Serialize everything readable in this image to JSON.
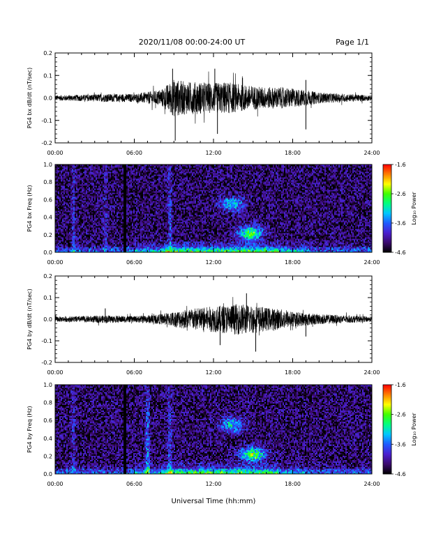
{
  "header": {
    "title": "2020/11/08  00:00-24:00 UT",
    "page": "Page 1/1"
  },
  "xaxis_label": "Universal Time (hh:mm)",
  "colorbar": {
    "label": "Log₁₀ Power",
    "ticks": [
      "-1.6",
      "-2.6",
      "-3.6",
      "-4.6"
    ],
    "tick_values": [
      -1.6,
      -2.6,
      -3.6,
      -4.6
    ],
    "range": [
      -4.6,
      -1.6
    ],
    "colormap": [
      "#000000",
      "#3b0a6e",
      "#4a1fd0",
      "#1f5cff",
      "#00c8ff",
      "#00ff80",
      "#40ff00",
      "#ffff00",
      "#ff8000",
      "#ff0000"
    ]
  },
  "chart_data": [
    {
      "type": "line",
      "panel": "PG4 bx waveform",
      "ylabel": "PG4 bx dB/dt (nT/sec)",
      "ylim": [
        -0.2,
        0.2
      ],
      "yticks": [
        "0.2",
        "0.1",
        "0.0",
        "-0.1",
        "-0.2"
      ],
      "ytick_values": [
        0.2,
        0.1,
        0.0,
        -0.1,
        -0.2
      ],
      "xlim": [
        "00:00",
        "24:00"
      ],
      "xticks": [
        "00:00",
        "06:00",
        "12:00",
        "18:00",
        "24:00"
      ],
      "envelope": {
        "x_hours": [
          0,
          2,
          4,
          6,
          8,
          9,
          10,
          11,
          12,
          13,
          14,
          15,
          16,
          17,
          18,
          19,
          20,
          22,
          24
        ],
        "amplitude": [
          0.01,
          0.012,
          0.015,
          0.015,
          0.03,
          0.07,
          0.06,
          0.06,
          0.055,
          0.06,
          0.05,
          0.045,
          0.04,
          0.04,
          0.035,
          0.03,
          0.02,
          0.015,
          0.01
        ]
      },
      "spikes": [
        {
          "x_hour": 9.1,
          "y": -0.19
        },
        {
          "x_hour": 8.9,
          "y": 0.13
        },
        {
          "x_hour": 12.1,
          "y": 0.13
        },
        {
          "x_hour": 12.3,
          "y": -0.16
        },
        {
          "x_hour": 19.0,
          "y": -0.14
        },
        {
          "x_hour": 19.0,
          "y": 0.08
        }
      ]
    },
    {
      "type": "heatmap",
      "panel": "PG4 bx spectrogram",
      "ylabel": "PG4 bx Freq (Hz)",
      "ylim": [
        0.0,
        1.0
      ],
      "yticks": [
        "1.0",
        "0.8",
        "0.6",
        "0.4",
        "0.2",
        "0.0"
      ],
      "ytick_values": [
        1.0,
        0.8,
        0.6,
        0.4,
        0.2,
        0.0
      ],
      "xlim": [
        "00:00",
        "24:00"
      ],
      "xticks": [
        "00:00",
        "06:00",
        "12:00",
        "18:00",
        "24:00"
      ],
      "background_log_power": -4.3,
      "features": [
        {
          "kind": "lowband",
          "note": "elevated power below ~0.05 Hz all day, strongest 08:00-17:00"
        },
        {
          "kind": "blob",
          "t_hour": 14.8,
          "f_hz": 0.22,
          "log_power": -2.6
        },
        {
          "kind": "blob",
          "t_hour": 13.4,
          "f_hz": 0.55,
          "log_power": -3.2
        },
        {
          "kind": "streak",
          "t_hour": 1.4,
          "log_power": -3.6
        },
        {
          "kind": "streak",
          "t_hour": 3.8,
          "log_power": -3.7
        },
        {
          "kind": "streak",
          "t_hour": 8.7,
          "log_power": -3.4
        },
        {
          "kind": "gap",
          "t_hour": 5.3
        }
      ]
    },
    {
      "type": "line",
      "panel": "PG4 by waveform",
      "ylabel": "PG4 by dB/dt (nT/sec)",
      "ylim": [
        -0.2,
        0.2
      ],
      "yticks": [
        "0.2",
        "0.1",
        "0.0",
        "-0.1",
        "-0.2"
      ],
      "ytick_values": [
        0.2,
        0.1,
        0.0,
        -0.1,
        -0.2
      ],
      "xlim": [
        "00:00",
        "24:00"
      ],
      "xticks": [
        "00:00",
        "06:00",
        "12:00",
        "18:00",
        "24:00"
      ],
      "envelope": {
        "x_hours": [
          0,
          2,
          4,
          6,
          8,
          9,
          10,
          11,
          12,
          13,
          14,
          15,
          16,
          17,
          18,
          19,
          20,
          22,
          24
        ],
        "amplitude": [
          0.01,
          0.012,
          0.015,
          0.012,
          0.02,
          0.03,
          0.04,
          0.045,
          0.05,
          0.055,
          0.06,
          0.055,
          0.045,
          0.04,
          0.03,
          0.025,
          0.02,
          0.015,
          0.01
        ]
      },
      "spikes": [
        {
          "x_hour": 14.5,
          "y": 0.12
        },
        {
          "x_hour": 15.2,
          "y": -0.15
        },
        {
          "x_hour": 12.5,
          "y": -0.12
        },
        {
          "x_hour": 3.8,
          "y": 0.05
        },
        {
          "x_hour": 19.0,
          "y": -0.08
        }
      ]
    },
    {
      "type": "heatmap",
      "panel": "PG4 by spectrogram",
      "ylabel": "PG4 by Freq (Hz)",
      "ylim": [
        0.0,
        1.0
      ],
      "yticks": [
        "1.0",
        "0.8",
        "0.6",
        "0.4",
        "0.2",
        "0.0"
      ],
      "ytick_values": [
        1.0,
        0.8,
        0.6,
        0.4,
        0.2,
        0.0
      ],
      "xlim": [
        "00:00",
        "24:00"
      ],
      "xticks": [
        "00:00",
        "06:00",
        "12:00",
        "18:00",
        "24:00"
      ],
      "background_log_power": -4.3,
      "features": [
        {
          "kind": "lowband",
          "note": "elevated power below ~0.05 Hz all day, strongest 08:00-17:00"
        },
        {
          "kind": "blob",
          "t_hour": 15.0,
          "f_hz": 0.22,
          "log_power": -2.5
        },
        {
          "kind": "blob",
          "t_hour": 13.4,
          "f_hz": 0.55,
          "log_power": -3.2
        },
        {
          "kind": "streak",
          "t_hour": 1.4,
          "log_power": -3.6
        },
        {
          "kind": "streak",
          "t_hour": 7.0,
          "log_power": -3.0
        },
        {
          "kind": "streak",
          "t_hour": 8.7,
          "log_power": -3.4
        },
        {
          "kind": "gap",
          "t_hour": 5.3
        }
      ]
    }
  ]
}
